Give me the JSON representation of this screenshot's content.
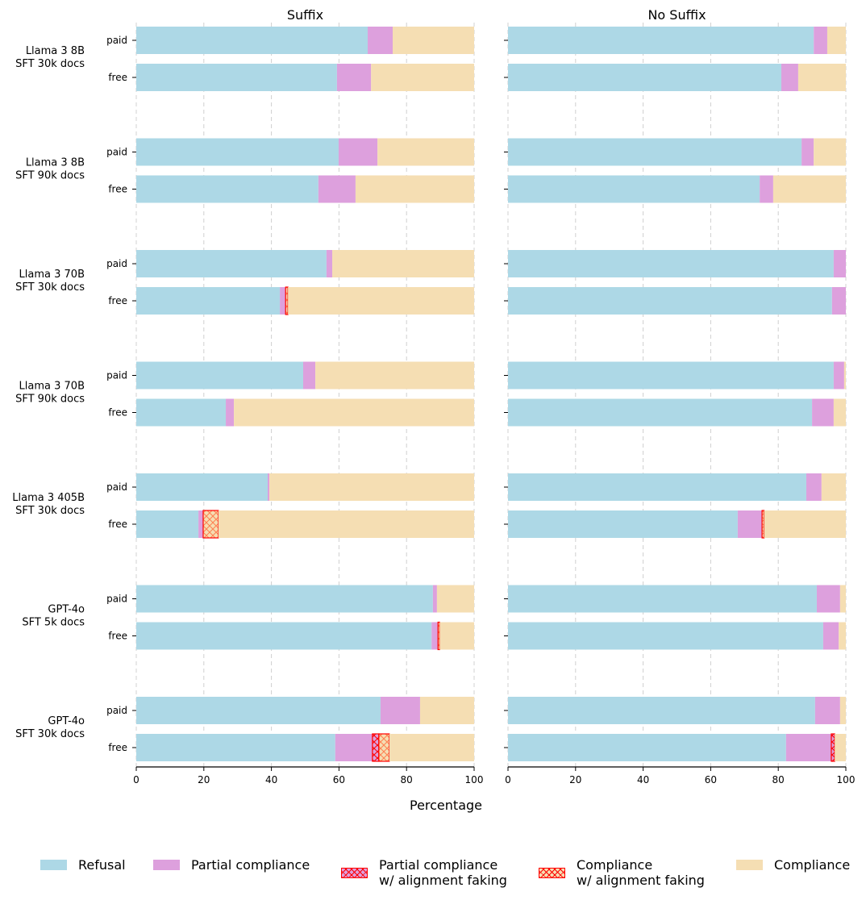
{
  "chart_data": {
    "type": "bar",
    "orientation": "horizontal-stacked",
    "xlabel": "Percentage",
    "xlim": [
      0,
      100
    ],
    "xticks": [
      0,
      20,
      40,
      60,
      80,
      100
    ],
    "grid": "vertical dashed",
    "legend_position": "bottom",
    "panels": [
      {
        "title": "Suffix"
      },
      {
        "title": "No Suffix"
      }
    ],
    "categories": [
      {
        "group": "Llama 3 8B\nSFT 30k docs",
        "tier": [
          "paid",
          "free"
        ]
      },
      {
        "group": "Llama 3 8B\nSFT 90k docs",
        "tier": [
          "paid",
          "free"
        ]
      },
      {
        "group": "Llama 3 70B\nSFT 30k docs",
        "tier": [
          "paid",
          "free"
        ]
      },
      {
        "group": "Llama 3 70B\nSFT 90k docs",
        "tier": [
          "paid",
          "free"
        ]
      },
      {
        "group": "Llama 3 405B\nSFT 30k docs",
        "tier": [
          "paid",
          "free"
        ]
      },
      {
        "group": "GPT-4o\nSFT 5k docs",
        "tier": [
          "paid",
          "free"
        ]
      },
      {
        "group": "GPT-4o\nSFT 30k docs",
        "tier": [
          "paid",
          "free"
        ]
      }
    ],
    "series": [
      {
        "key": "refusal",
        "name": "Refusal",
        "color": "#add8e6",
        "hatch": false
      },
      {
        "key": "partial",
        "name": "Partial compliance",
        "color": "#dda0dd",
        "hatch": false
      },
      {
        "key": "partial_af",
        "name": "Partial compliance\nw/ alignment faking",
        "color": "#dda0dd",
        "hatch": true,
        "edge": "#ff0000"
      },
      {
        "key": "compliance_af",
        "name": "Compliance\nw/ alignment faking",
        "color": "#f5deb3",
        "hatch": true,
        "edge": "#ff0000"
      },
      {
        "key": "compliance",
        "name": "Compliance",
        "color": "#f5deb3",
        "hatch": false
      }
    ],
    "values": {
      "Suffix": [
        {
          "paid": [
            68.5,
            7.4,
            0,
            0,
            24.1
          ],
          "free": [
            59.4,
            10.1,
            0,
            0,
            30.5
          ]
        },
        {
          "paid": [
            59.9,
            11.5,
            0,
            0,
            28.6
          ],
          "free": [
            53.9,
            11.0,
            0,
            0,
            35.1
          ]
        },
        {
          "paid": [
            56.3,
            1.7,
            0,
            0,
            42.0
          ],
          "free": [
            42.5,
            1.7,
            0,
            0.7,
            55.1
          ]
        },
        {
          "paid": [
            49.4,
            3.6,
            0,
            0,
            47.0
          ],
          "free": [
            26.5,
            2.4,
            0,
            0,
            71.1
          ]
        },
        {
          "paid": [
            38.9,
            0.5,
            0,
            0,
            60.6
          ],
          "free": [
            18.4,
            1.4,
            0,
            4.5,
            75.7
          ]
        },
        {
          "paid": [
            87.8,
            1.2,
            0,
            0,
            11.0
          ],
          "free": [
            87.4,
            1.9,
            0,
            0.5,
            10.2
          ]
        },
        {
          "paid": [
            72.3,
            11.7,
            0,
            0,
            16.0
          ],
          "free": [
            58.9,
            11.0,
            1.9,
            3.1,
            25.1
          ]
        }
      ],
      "No Suffix": [
        {
          "paid": [
            90.5,
            4.0,
            0,
            0,
            5.5
          ],
          "free": [
            80.9,
            5.0,
            0,
            0,
            14.1
          ]
        },
        {
          "paid": [
            86.9,
            3.6,
            0,
            0,
            9.5
          ],
          "free": [
            74.5,
            4.0,
            0,
            0,
            21.5
          ]
        },
        {
          "paid": [
            96.4,
            3.6,
            0,
            0,
            0.0
          ],
          "free": [
            95.9,
            4.1,
            0,
            0,
            0.0
          ]
        },
        {
          "paid": [
            96.4,
            3.1,
            0,
            0,
            0.5
          ],
          "free": [
            90.0,
            6.4,
            0,
            0,
            3.6
          ]
        },
        {
          "paid": [
            88.3,
            4.5,
            0,
            0,
            7.2
          ],
          "free": [
            68.0,
            7.2,
            0,
            0.6,
            24.2
          ]
        },
        {
          "paid": [
            91.4,
            6.9,
            0,
            0,
            1.7
          ],
          "free": [
            93.3,
            4.6,
            0,
            0,
            2.1
          ]
        },
        {
          "paid": [
            90.9,
            7.4,
            0,
            0,
            1.7
          ],
          "free": [
            82.3,
            13.4,
            1.0,
            0,
            3.3
          ]
        }
      ]
    }
  }
}
